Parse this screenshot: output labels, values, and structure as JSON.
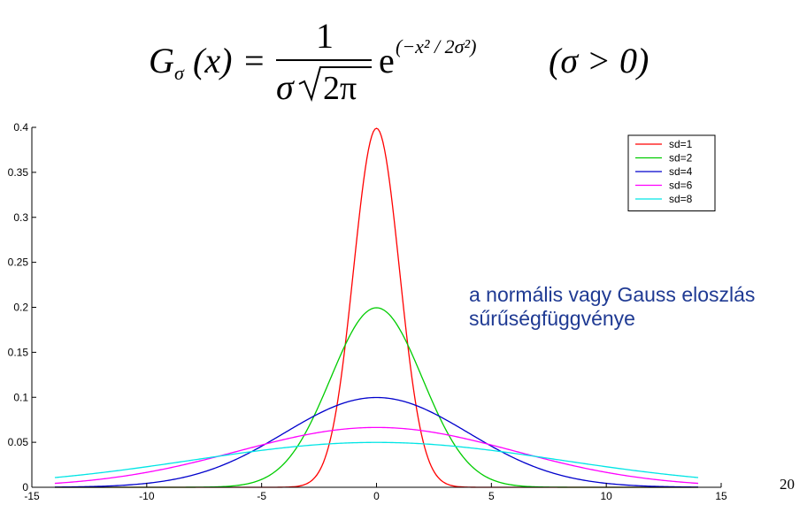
{
  "formula": {
    "lhs_g": "G",
    "lhs_sub": "σ",
    "lhs_arg": "(x)",
    "equals": "=",
    "numerator": "1",
    "denominator_sigma": "σ",
    "denominator_root": "2π",
    "exp_base": "e",
    "exponent": "(−x² / 2σ²)",
    "condition": "(σ > 0)"
  },
  "caption": {
    "line1": "a normális vagy Gauss eloszlás",
    "line2": "sűrűségfüggvénye"
  },
  "page_number": "20",
  "chart_data": {
    "type": "line",
    "title": "",
    "xlabel": "",
    "ylabel": "",
    "xlim": [
      -15,
      15
    ],
    "ylim": [
      0,
      0.4
    ],
    "x_range": [
      -14,
      14
    ],
    "xticks": [
      "-15",
      "-10",
      "-5",
      "0",
      "5",
      "10",
      "15"
    ],
    "yticks": [
      "0",
      "0.05",
      "0.1",
      "0.15",
      "0.2",
      "0.25",
      "0.3",
      "0.35",
      "0.4"
    ],
    "legend_position": "top-right",
    "grid": false,
    "series": [
      {
        "name": "sd=1",
        "sd": 1,
        "color": "#ff0000"
      },
      {
        "name": "sd=2",
        "sd": 2,
        "color": "#00cc00"
      },
      {
        "name": "sd=4",
        "sd": 4,
        "color": "#0000cc"
      },
      {
        "name": "sd=6",
        "sd": 6,
        "color": "#ff00ff"
      },
      {
        "name": "sd=8",
        "sd": 8,
        "color": "#00e5e5"
      }
    ]
  }
}
